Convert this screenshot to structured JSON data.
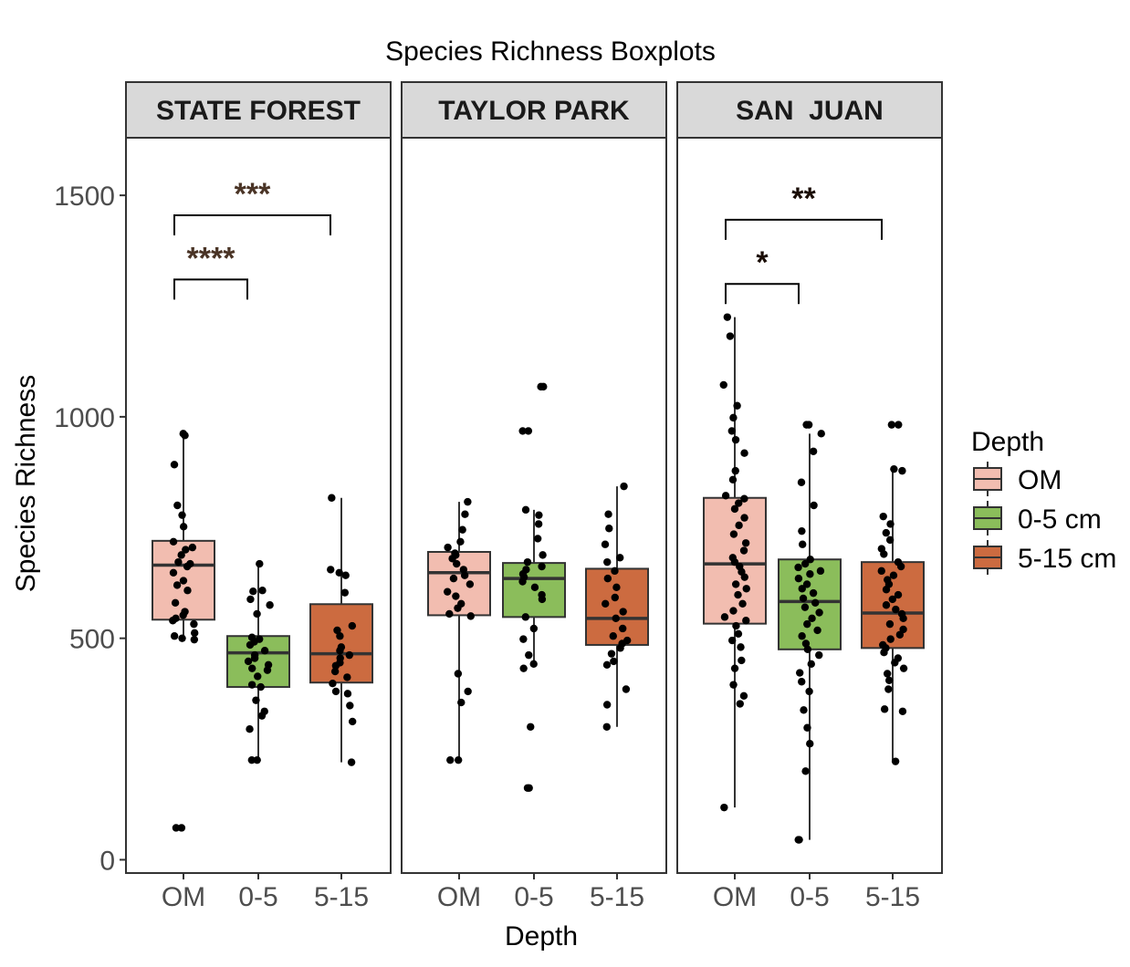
{
  "chart_data": {
    "type": "boxplot",
    "title": "Species Richness Boxplots",
    "xlabel": "Depth",
    "ylabel": "Species Richness",
    "ylim": [
      -30,
      1630
    ],
    "yticks": [
      0,
      500,
      1000,
      1500
    ],
    "categories": [
      "OM",
      "0-5",
      "5-15"
    ],
    "grid": false,
    "legend": {
      "title": "Depth",
      "placement": "right",
      "items": [
        {
          "label": "OM",
          "color": "#F2BDB0"
        },
        {
          "label": "0-5 cm",
          "color": "#8BBD5B"
        },
        {
          "label": "5-15 cm",
          "color": "#CC6B40"
        }
      ]
    },
    "panels": [
      {
        "name": "STATE FOREST",
        "boxes": [
          {
            "category": "OM",
            "q1": 542,
            "median": 665,
            "q3": 720,
            "whisker_low": 497,
            "whisker_high": 962,
            "points": [
              962,
              958,
              892,
              800,
              778,
              752,
              718,
              705,
              700,
              688,
              672,
              668,
              662,
              648,
              630,
              620,
              608,
              580,
              560,
              552,
              545,
              540,
              532,
              512,
              505,
              500,
              497,
              72,
              72
            ]
          },
          {
            "category": "0-5",
            "q1": 390,
            "median": 467,
            "q3": 505,
            "whisker_low": 225,
            "whisker_high": 668,
            "points": [
              668,
              608,
              606,
              588,
              575,
              555,
              502,
              498,
              492,
              485,
              472,
              462,
              455,
              448,
              440,
              432,
              428,
              414,
              395,
              390,
              360,
              335,
              325,
              295,
              225,
              225
            ]
          },
          {
            "category": "5-15",
            "q1": 400,
            "median": 465,
            "q3": 577,
            "whisker_low": 220,
            "whisker_high": 817,
            "points": [
              817,
              655,
              648,
              642,
              603,
              528,
              518,
              505,
              480,
              472,
              462,
              455,
              445,
              438,
              425,
              412,
              398,
              380,
              375,
              348,
              312,
              220
            ]
          }
        ],
        "comparisons": [
          {
            "from": "OM",
            "to": "0-5",
            "label": "****",
            "y": 1310
          },
          {
            "from": "OM",
            "to": "5-15",
            "label": "***",
            "y": 1455
          }
        ]
      },
      {
        "name": "TAYLOR PARK",
        "boxes": [
          {
            "category": "OM",
            "q1": 552,
            "median": 648,
            "q3": 695,
            "whisker_low": 225,
            "whisker_high": 808,
            "points": [
              808,
              780,
              745,
              718,
              705,
              692,
              688,
              680,
              668,
              655,
              642,
              635,
              622,
              605,
              595,
              578,
              568,
              555,
              550,
              420,
              380,
              355,
              225,
              225
            ]
          },
          {
            "category": "0-5",
            "q1": 548,
            "median": 635,
            "q3": 670,
            "whisker_low": 440,
            "whisker_high": 790,
            "points": [
              1068,
              1068,
              968,
              968,
              790,
              778,
              758,
              725,
              688,
              672,
              662,
              655,
              645,
              638,
              628,
              615,
              598,
              588,
              548,
              522,
              498,
              462,
              442,
              432,
              300,
              162,
              162
            ]
          },
          {
            "category": "5-15",
            "q1": 485,
            "median": 545,
            "q3": 657,
            "whisker_low": 300,
            "whisker_high": 843,
            "points": [
              843,
              780,
              748,
              712,
              682,
              672,
              652,
              635,
              615,
              592,
              578,
              560,
              545,
              522,
              505,
              495,
              488,
              478,
              465,
              448,
              440,
              385,
              350,
              300
            ]
          }
        ],
        "comparisons": []
      },
      {
        "name": "SAN  JUAN",
        "boxes": [
          {
            "category": "OM",
            "q1": 533,
            "median": 668,
            "q3": 817,
            "whisker_low": 118,
            "whisker_high": 1225,
            "points": [
              1225,
              1182,
              1072,
              1025,
              998,
              968,
              948,
              918,
              878,
              858,
              822,
              815,
              805,
              792,
              772,
              755,
              735,
              715,
              698,
              682,
              672,
              662,
              650,
              638,
              622,
              612,
              598,
              578,
              562,
              548,
              540,
              528,
              510,
              495,
              480,
              450,
              432,
              395,
              370,
              352,
              118
            ]
          },
          {
            "category": "0-5",
            "q1": 475,
            "median": 583,
            "q3": 678,
            "whisker_low": 45,
            "whisker_high": 962,
            "points": [
              982,
              982,
              962,
              922,
              852,
              800,
              742,
              712,
              678,
              668,
              660,
              652,
              645,
              635,
              622,
              612,
              602,
              590,
              580,
              570,
              558,
              545,
              532,
              518,
              505,
              488,
              475,
              462,
              442,
              422,
              402,
              380,
              338,
              298,
              262,
              200,
              45,
              45
            ]
          },
          {
            "category": "5-15",
            "q1": 478,
            "median": 557,
            "q3": 672,
            "whisker_low": 222,
            "whisker_high": 878,
            "points": [
              982,
              982,
              882,
              878,
              775,
              758,
              738,
              722,
              702,
              690,
              672,
              662,
              652,
              642,
              632,
              622,
              610,
              598,
              588,
              575,
              565,
              555,
              545,
              532,
              520,
              508,
              498,
              485,
              478,
              468,
              455,
              445,
              432,
              420,
              405,
              385,
              340,
              335,
              222
            ]
          }
        ],
        "comparisons": [
          {
            "from": "OM",
            "to": "0-5",
            "label": "*",
            "y": 1300
          },
          {
            "from": "OM",
            "to": "5-15",
            "label": "**",
            "y": 1445
          }
        ]
      }
    ]
  }
}
